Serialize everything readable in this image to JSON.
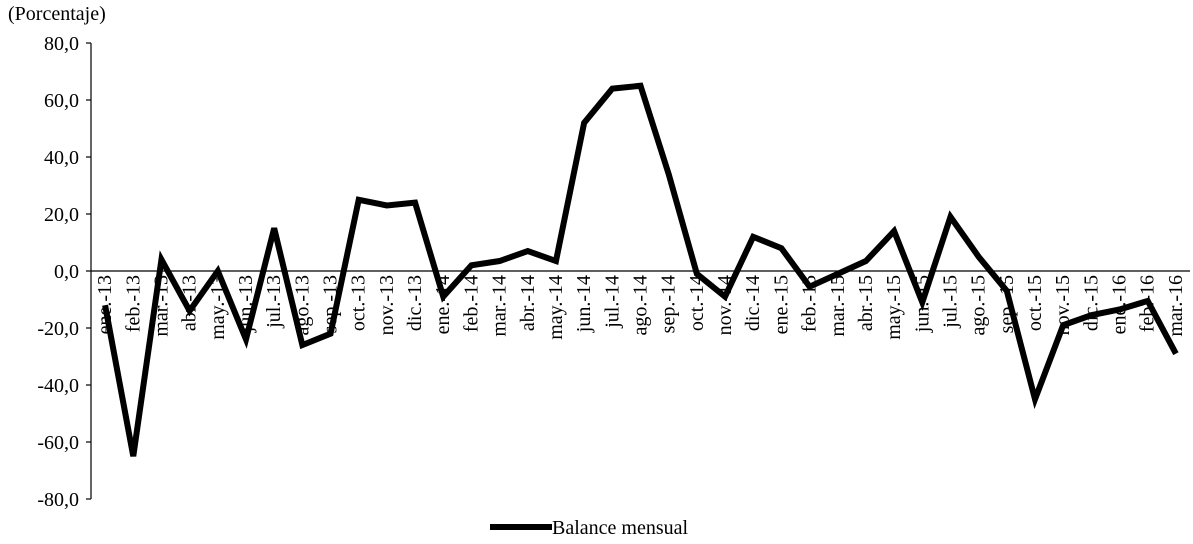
{
  "chart_data": {
    "type": "line",
    "y_label": "(Porcentaje)",
    "categories": [
      "ene.-13",
      "feb.-13",
      "mar.-13",
      "abr.-13",
      "may.-13",
      "jun.-13",
      "jul.-13",
      "ago.-13",
      "sep.-13",
      "oct.-13",
      "nov.-13",
      "dic.-13",
      "ene.-14",
      "feb.-14",
      "mar.-14",
      "abr.-14",
      "may.-14",
      "jun.-14",
      "jul.-14",
      "ago.-14",
      "sep.-14",
      "oct.-14",
      "nov.-14",
      "dic.-14",
      "ene.-15",
      "feb.-15",
      "mar.-15",
      "abr.-15",
      "may.-15",
      "jun.-15",
      "jul.-15",
      "ago.-15",
      "sep.-15",
      "oct.-15",
      "nov.-15",
      "dic.-15",
      "ene.-16",
      "feb.-16",
      "mar.-16"
    ],
    "series": [
      {
        "name": "Balance mensual",
        "color": "#000000",
        "values": [
          -12,
          -65,
          4,
          -14,
          0,
          -24,
          15,
          -26,
          -22,
          25,
          23,
          24,
          -9,
          2,
          3.5,
          7,
          3.5,
          52,
          64,
          65,
          34,
          -1,
          -9,
          12,
          8,
          -5.5,
          -1,
          3.5,
          14,
          -11,
          19,
          5,
          -7,
          -45,
          -19,
          -15.5,
          -13.5,
          -10.5,
          -29
        ]
      }
    ],
    "ylim": [
      -80,
      80
    ],
    "yticks": [
      {
        "value": -80,
        "label": "-80,0"
      },
      {
        "value": -60,
        "label": "-60,0"
      },
      {
        "value": -40,
        "label": "-40,0"
      },
      {
        "value": -20,
        "label": "-20,0"
      },
      {
        "value": 0,
        "label": "0,0"
      },
      {
        "value": 20,
        "label": "20,0"
      },
      {
        "value": 40,
        "label": "40,0"
      },
      {
        "value": 60,
        "label": "60,0"
      },
      {
        "value": 80,
        "label": "80,0"
      }
    ],
    "legend": "bottom"
  }
}
